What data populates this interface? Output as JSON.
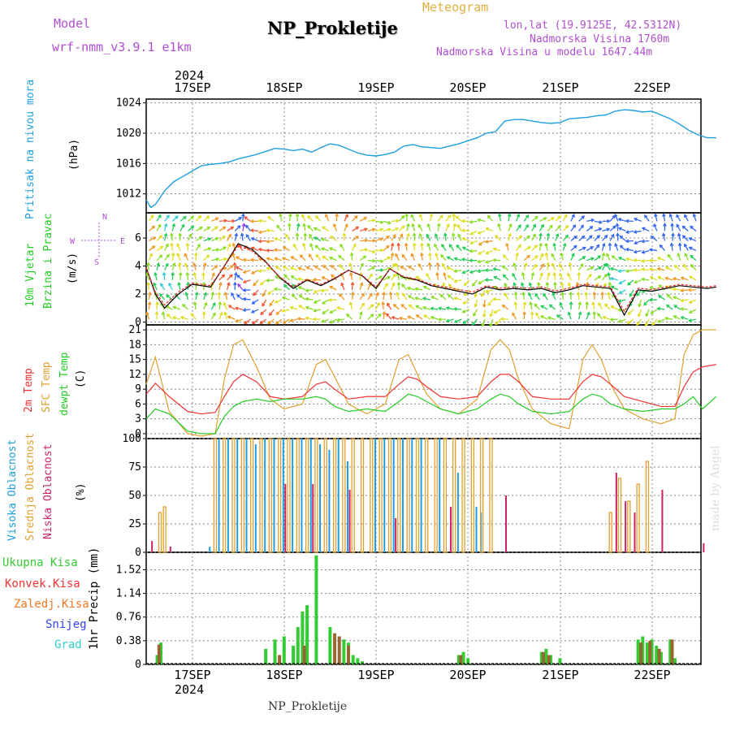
{
  "header": {
    "model_label": "Model",
    "model_value": "wrf-nmm_v3.9.1  e1km",
    "title": "NP_Prokletije",
    "subtitle": "Meteogram",
    "lonlat": "lon,lat (19.9125E, 42.5312N)",
    "elevation": "Nadmorska Visina 1760m",
    "model_elevation": "Nadmorska Visina u modelu 1647.44m",
    "year_top": "2024",
    "year_bottom": "2024",
    "footer": "NP_Prokletije",
    "credit": "made by Angel"
  },
  "colors": {
    "pressure": "#1e9fe0",
    "wind_axis": "#b050d0",
    "temp2m": "#ee3333",
    "sfc": "#e0a030",
    "dewpt": "#22cc22",
    "visoka": "#1e9fe0",
    "srednja": "#e0a030",
    "niska": "#cc2266",
    "ukupna": "#33cc33",
    "konvek": "#ee3333",
    "zaledj": "#ee7722",
    "snijeg": "#3344ee",
    "grad": "#33cccc"
  },
  "chart_data": [
    {
      "type": "line",
      "panel": "pressure",
      "ylabel_main": "Pritisak na nivou mora",
      "unit": "(hPa)",
      "yticks": [
        "1012",
        "1016",
        "1020",
        "1024"
      ],
      "ylim": [
        1009.5,
        1024.5
      ],
      "x_days": [
        "17SEP",
        "18SEP",
        "19SEP",
        "20SEP",
        "21SEP",
        "22SEP"
      ],
      "series": [
        {
          "x": [
            0,
            0.05,
            0.1,
            0.2,
            0.3,
            0.4,
            0.5,
            0.6,
            0.7,
            0.8,
            0.9,
            1.0,
            1.1,
            1.2,
            1.3,
            1.4,
            1.5,
            1.6,
            1.7,
            1.8,
            1.9,
            2.0,
            2.1,
            2.2,
            2.3,
            2.4,
            2.5,
            2.6,
            2.7,
            2.8,
            2.9,
            3.0,
            3.1,
            3.2,
            3.3,
            3.4,
            3.5,
            3.6,
            3.7,
            3.8,
            3.9,
            4.0,
            4.1,
            4.2,
            4.3,
            4.4,
            4.5,
            4.6,
            4.7,
            4.8,
            4.9,
            5.0,
            5.1,
            5.2,
            5.3,
            5.4,
            5.5,
            5.6,
            5.7,
            5.8,
            5.9,
            6.0,
            6.1,
            6.2
          ],
          "y": [
            1011.2,
            1010.2,
            1010.6,
            1012.4,
            1013.6,
            1014.3,
            1015.0,
            1015.7,
            1015.9,
            1016.0,
            1016.2,
            1016.6,
            1016.9,
            1017.2,
            1017.6,
            1018.0,
            1017.9,
            1017.7,
            1017.9,
            1017.5,
            1018.1,
            1018.6,
            1018.4,
            1017.9,
            1017.4,
            1017.1,
            1017.0,
            1017.2,
            1017.5,
            1018.3,
            1018.5,
            1018.2,
            1018.1,
            1018.0,
            1018.3,
            1018.6,
            1019.0,
            1019.4,
            1020.0,
            1020.2,
            1021.6,
            1021.8,
            1021.8,
            1021.6,
            1021.4,
            1021.3,
            1021.4,
            1021.9,
            1022.0,
            1022.1,
            1022.3,
            1022.4,
            1022.9,
            1023.1,
            1023.0,
            1022.8,
            1022.9,
            1022.4,
            1021.9,
            1021.2,
            1020.4,
            1019.8,
            1019.4,
            1019.4
          ]
        }
      ]
    },
    {
      "type": "line",
      "panel": "wind",
      "ylabel_main": "10m Vjetar",
      "ylabel_sub": "Brzina i Pravac",
      "unit": "(m/s)",
      "compass": {
        "n": "N",
        "s": "S",
        "e": "E",
        "w": "W"
      },
      "yticks": [
        "0",
        "2",
        "4",
        "6"
      ],
      "ylim": [
        -0.2,
        7.8
      ],
      "series": [
        {
          "name": "speed",
          "x": [
            0,
            0.1,
            0.2,
            0.35,
            0.5,
            0.7,
            0.85,
            1.0,
            1.15,
            1.3,
            1.45,
            1.6,
            1.75,
            1.9,
            2.05,
            2.2,
            2.35,
            2.5,
            2.65,
            2.8,
            2.95,
            3.1,
            3.25,
            3.4,
            3.55,
            3.7,
            3.85,
            4.0,
            4.15,
            4.3,
            4.45,
            4.6,
            4.75,
            4.9,
            5.05,
            5.2,
            5.35,
            5.5,
            5.65,
            5.8,
            5.95,
            6.1,
            6.2
          ],
          "y": [
            3.9,
            2.0,
            1.0,
            2.0,
            2.7,
            2.5,
            4.0,
            5.6,
            5.2,
            4.3,
            3.2,
            2.4,
            3.0,
            2.6,
            3.1,
            3.7,
            3.3,
            2.4,
            3.8,
            3.2,
            3.0,
            2.6,
            2.4,
            2.2,
            2.0,
            2.5,
            2.3,
            2.4,
            2.3,
            2.4,
            2.1,
            2.3,
            2.6,
            2.5,
            2.4,
            0.5,
            2.3,
            2.2,
            2.4,
            2.6,
            2.5,
            2.4,
            2.5
          ]
        }
      ]
    },
    {
      "type": "line",
      "panel": "temperature",
      "labels": [
        "2m Temp",
        "SFC Temp",
        "dewpt Temp"
      ],
      "unit": "(C)",
      "yticks": [
        "0",
        "3",
        "6",
        "9",
        "12",
        "15",
        "18",
        "21"
      ],
      "ylim": [
        -1,
        22
      ],
      "series": [
        {
          "name": "2m Temp",
          "x": [
            0,
            0.1,
            0.25,
            0.45,
            0.6,
            0.75,
            0.85,
            0.95,
            1.05,
            1.2,
            1.35,
            1.5,
            1.7,
            1.85,
            1.95,
            2.05,
            2.2,
            2.4,
            2.6,
            2.75,
            2.85,
            2.95,
            3.05,
            3.2,
            3.4,
            3.6,
            3.75,
            3.85,
            3.95,
            4.05,
            4.2,
            4.4,
            4.6,
            4.75,
            4.85,
            4.95,
            5.05,
            5.2,
            5.4,
            5.6,
            5.75,
            5.85,
            5.95,
            6.05,
            6.2
          ],
          "y": [
            8,
            10.2,
            7.5,
            4.5,
            4,
            4.3,
            7.5,
            10.5,
            12.0,
            10.5,
            7.5,
            7.0,
            7.5,
            10.0,
            10.5,
            9.0,
            7.0,
            7.5,
            7.5,
            10.0,
            11.5,
            11.0,
            9.5,
            7.5,
            7.0,
            7.5,
            10.5,
            12.0,
            12.0,
            10.5,
            7.5,
            7.0,
            7.0,
            10.5,
            12.0,
            11.5,
            10.0,
            7.5,
            6.5,
            5.5,
            5.5,
            9.5,
            12.5,
            13.5,
            14.0
          ]
        },
        {
          "name": "SFC Temp",
          "x": [
            0,
            0.1,
            0.25,
            0.45,
            0.6,
            0.75,
            0.85,
            0.95,
            1.05,
            1.2,
            1.35,
            1.5,
            1.7,
            1.85,
            1.95,
            2.05,
            2.2,
            2.4,
            2.6,
            2.75,
            2.85,
            2.95,
            3.05,
            3.2,
            3.4,
            3.6,
            3.75,
            3.85,
            3.95,
            4.05,
            4.2,
            4.4,
            4.6,
            4.75,
            4.85,
            4.95,
            5.05,
            5.2,
            5.4,
            5.6,
            5.75,
            5.85,
            5.95,
            6.05,
            6.2
          ],
          "y": [
            10,
            15.5,
            4.5,
            0,
            -0.5,
            0,
            11,
            18,
            19.0,
            13.5,
            7,
            5,
            6,
            14,
            15,
            11.5,
            6,
            4,
            6,
            15,
            16,
            12,
            8,
            5,
            4,
            7,
            17,
            19,
            17,
            11,
            5,
            2,
            1,
            15,
            18,
            15,
            10,
            5,
            3,
            2,
            3,
            16,
            20,
            21,
            21
          ]
        },
        {
          "name": "dewpt Temp",
          "x": [
            0,
            0.1,
            0.25,
            0.45,
            0.6,
            0.75,
            0.85,
            0.95,
            1.05,
            1.2,
            1.35,
            1.5,
            1.7,
            1.85,
            1.95,
            2.05,
            2.2,
            2.4,
            2.6,
            2.75,
            2.85,
            2.95,
            3.05,
            3.2,
            3.4,
            3.6,
            3.75,
            3.85,
            3.95,
            4.05,
            4.2,
            4.4,
            4.6,
            4.75,
            4.85,
            4.95,
            5.05,
            5.2,
            5.4,
            5.6,
            5.75,
            5.85,
            5.95,
            6.05,
            6.2
          ],
          "y": [
            3,
            5.0,
            4.0,
            0.5,
            0,
            0,
            3.5,
            5.5,
            6.5,
            7.0,
            6.5,
            7.0,
            7.0,
            7.5,
            7.0,
            5.5,
            4.5,
            5.0,
            4.5,
            6.5,
            8.0,
            7.5,
            6.5,
            5.0,
            4.0,
            5.0,
            7.0,
            8.0,
            7.5,
            6.0,
            4.5,
            4.0,
            4.5,
            7.0,
            8.0,
            7.5,
            6.0,
            5.0,
            4.5,
            5.0,
            5.0,
            6.0,
            7.5,
            5.0,
            7.5
          ]
        }
      ]
    },
    {
      "type": "bar",
      "panel": "cloud",
      "labels": [
        "Visoka Oblacnost",
        "Srednja Oblacnost",
        "Niska Oblacnost"
      ],
      "unit": "(%)",
      "yticks": [
        "0",
        "25",
        "50",
        "75",
        "100"
      ],
      "ylim": [
        0,
        100
      ],
      "series": [
        {
          "name": "Visoka Oblacnost",
          "x": [
            0.7,
            0.8,
            0.9,
            1.0,
            1.1,
            1.2,
            1.3,
            1.4,
            1.5,
            1.6,
            1.7,
            1.8,
            1.9,
            2.0,
            2.1,
            2.2,
            2.5,
            2.6,
            2.7,
            2.8,
            2.9,
            3.0,
            3.2,
            3.4,
            3.6,
            3.65
          ],
          "values": [
            5,
            100,
            100,
            100,
            100,
            95,
            100,
            100,
            100,
            100,
            100,
            100,
            95,
            90,
            100,
            80,
            100,
            100,
            100,
            100,
            100,
            100,
            100,
            70,
            40,
            35
          ]
        },
        {
          "name": "Srednja Oblacnost",
          "x": [
            0.15,
            0.2,
            0.75,
            0.85,
            0.95,
            1.05,
            1.15,
            1.25,
            1.35,
            1.45,
            1.55,
            1.65,
            1.75,
            1.85,
            1.95,
            2.05,
            2.15,
            2.25,
            2.35,
            2.45,
            2.55,
            2.65,
            2.75,
            2.85,
            2.95,
            3.05,
            3.15,
            3.25,
            3.35,
            3.45,
            3.55,
            3.65,
            3.75,
            5.05,
            5.15,
            5.25,
            5.35,
            5.45
          ],
          "values": [
            35,
            40,
            100,
            100,
            100,
            100,
            100,
            100,
            100,
            100,
            100,
            100,
            100,
            100,
            100,
            100,
            100,
            100,
            100,
            100,
            100,
            100,
            100,
            100,
            100,
            100,
            100,
            100,
            100,
            100,
            100,
            100,
            100,
            35,
            65,
            45,
            60,
            80
          ]
        },
        {
          "name": "Niska Oblacnost",
          "x": [
            0.05,
            0.25,
            1.5,
            1.8,
            2.2,
            2.7,
            3.3,
            3.9,
            5.1,
            5.2,
            5.3,
            5.6,
            6.05
          ],
          "values": [
            10,
            5,
            60,
            60,
            55,
            30,
            40,
            50,
            70,
            45,
            35,
            55,
            8
          ]
        }
      ]
    },
    {
      "type": "bar",
      "panel": "precip",
      "labels": [
        "Ukupna Kisa",
        "Konvek.Kisa",
        "Zaledj.Kisa",
        "Snijeg",
        "Grad"
      ],
      "unit": "1hr Precip (mm)",
      "yticks": [
        "0",
        "0.38",
        "0.76",
        "1.14",
        "1.52"
      ],
      "ylim": [
        0,
        1.8
      ],
      "series": [
        {
          "name": "Ukupna Kisa",
          "x": [
            0.12,
            0.16,
            1.3,
            1.4,
            1.5,
            1.6,
            1.65,
            1.7,
            1.75,
            1.85,
            2.0,
            2.15,
            2.2,
            2.25,
            2.3,
            2.35,
            3.4,
            3.45,
            3.5,
            4.3,
            4.35,
            4.4,
            4.5,
            5.35,
            5.4,
            5.45,
            5.5,
            5.55,
            5.6,
            5.7,
            5.75
          ],
          "values": [
            0.15,
            0.35,
            0.25,
            0.4,
            0.45,
            0.3,
            0.6,
            0.85,
            0.95,
            1.75,
            0.6,
            0.4,
            0.35,
            0.15,
            0.1,
            0.05,
            0.15,
            0.2,
            0.1,
            0.2,
            0.25,
            0.15,
            0.1,
            0.4,
            0.45,
            0.35,
            0.4,
            0.3,
            0.2,
            0.4,
            0.1
          ]
        },
        {
          "name": "Konvek.Kisa",
          "x": [
            0.14,
            1.45,
            1.72,
            2.05,
            2.1,
            2.2,
            3.42,
            4.32,
            4.38,
            5.38,
            5.48,
            5.58,
            5.72
          ],
          "values": [
            0.32,
            0.15,
            0.3,
            0.5,
            0.45,
            0.3,
            0.15,
            0.2,
            0.15,
            0.35,
            0.38,
            0.25,
            0.4
          ]
        }
      ]
    }
  ]
}
